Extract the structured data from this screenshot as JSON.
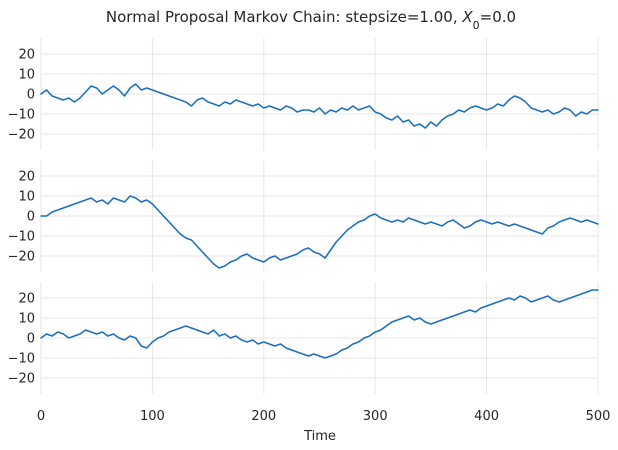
{
  "chart_data": {
    "type": "line",
    "title": "Normal Proposal Markov Chain: stepsize=1.00, X0=0.0",
    "title_parts": {
      "prefix": "Normal Proposal Markov Chain: stepsize=1.00, ",
      "symbol": "X",
      "subscript": "0",
      "suffix": "=0.0"
    },
    "xlabel": "Time",
    "xlim": [
      0,
      500
    ],
    "xticks": [
      0,
      100,
      200,
      300,
      400,
      500
    ],
    "line_color": "#1f6fbf",
    "grid": true,
    "panels": [
      {
        "ylim": [
          -28,
          28
        ],
        "yticks": [
          20,
          10,
          0,
          -10,
          -20
        ],
        "series": [
          {
            "x": [
              0,
              5,
              10,
              15,
              20,
              25,
              30,
              35,
              40,
              45,
              50,
              55,
              60,
              65,
              70,
              75,
              80,
              85,
              90,
              95,
              100,
              105,
              110,
              115,
              120,
              125,
              130,
              135,
              140,
              145,
              150,
              155,
              160,
              165,
              170,
              175,
              180,
              185,
              190,
              195,
              200,
              205,
              210,
              215,
              220,
              225,
              230,
              235,
              240,
              245,
              250,
              255,
              260,
              265,
              270,
              275,
              280,
              285,
              290,
              295,
              300,
              305,
              310,
              315,
              320,
              325,
              330,
              335,
              340,
              345,
              350,
              355,
              360,
              365,
              370,
              375,
              380,
              385,
              390,
              395,
              400,
              405,
              410,
              415,
              420,
              425,
              430,
              435,
              440,
              445,
              450,
              455,
              460,
              465,
              470,
              475,
              480,
              485,
              490,
              495,
              500
            ],
            "values": [
              0,
              2,
              -1,
              -2,
              -3,
              -2,
              -4,
              -2,
              1,
              4,
              3,
              0,
              2,
              4,
              2,
              -1,
              3,
              5,
              2,
              3,
              2,
              1,
              0,
              -1,
              -2,
              -3,
              -4,
              -6,
              -3,
              -2,
              -4,
              -5,
              -6,
              -4,
              -5,
              -3,
              -4,
              -5,
              -6,
              -5,
              -7,
              -6,
              -7,
              -8,
              -6,
              -7,
              -9,
              -8,
              -8,
              -9,
              -7,
              -10,
              -8,
              -9,
              -7,
              -8,
              -6,
              -8,
              -7,
              -6,
              -9,
              -10,
              -12,
              -13,
              -11,
              -14,
              -13,
              -16,
              -15,
              -17,
              -14,
              -16,
              -13,
              -11,
              -10,
              -8,
              -9,
              -7,
              -6,
              -7,
              -8,
              -7,
              -5,
              -6,
              -3,
              -1,
              -2,
              -4,
              -7,
              -8,
              -9,
              -8,
              -10,
              -9,
              -7,
              -8,
              -11,
              -9,
              -10,
              -8,
              -8
            ]
          }
        ]
      },
      {
        "ylim": [
          -28,
          28
        ],
        "yticks": [
          20,
          10,
          0,
          -10,
          -20
        ],
        "series": [
          {
            "x": [
              0,
              5,
              10,
              15,
              20,
              25,
              30,
              35,
              40,
              45,
              50,
              55,
              60,
              65,
              70,
              75,
              80,
              85,
              90,
              95,
              100,
              105,
              110,
              115,
              120,
              125,
              130,
              135,
              140,
              145,
              150,
              155,
              160,
              165,
              170,
              175,
              180,
              185,
              190,
              195,
              200,
              205,
              210,
              215,
              220,
              225,
              230,
              235,
              240,
              245,
              250,
              255,
              260,
              265,
              270,
              275,
              280,
              285,
              290,
              295,
              300,
              305,
              310,
              315,
              320,
              325,
              330,
              335,
              340,
              345,
              350,
              355,
              360,
              365,
              370,
              375,
              380,
              385,
              390,
              395,
              400,
              405,
              410,
              415,
              420,
              425,
              430,
              435,
              440,
              445,
              450,
              455,
              460,
              465,
              470,
              475,
              480,
              485,
              490,
              495,
              500
            ],
            "values": [
              0,
              0,
              2,
              3,
              4,
              5,
              6,
              7,
              8,
              9,
              7,
              8,
              6,
              9,
              8,
              7,
              10,
              9,
              7,
              8,
              6,
              3,
              0,
              -3,
              -6,
              -9,
              -11,
              -12,
              -15,
              -18,
              -21,
              -24,
              -26,
              -25,
              -23,
              -22,
              -20,
              -19,
              -21,
              -22,
              -23,
              -21,
              -20,
              -22,
              -21,
              -20,
              -19,
              -17,
              -16,
              -18,
              -19,
              -21,
              -17,
              -13,
              -10,
              -7,
              -5,
              -3,
              -2,
              0,
              1,
              -1,
              -2,
              -3,
              -2,
              -3,
              -1,
              -2,
              -3,
              -4,
              -3,
              -4,
              -5,
              -3,
              -2,
              -4,
              -6,
              -5,
              -3,
              -2,
              -3,
              -4,
              -3,
              -4,
              -5,
              -4,
              -5,
              -6,
              -7,
              -8,
              -9,
              -6,
              -5,
              -3,
              -2,
              -1,
              -2,
              -3,
              -2,
              -3,
              -4
            ]
          }
        ]
      },
      {
        "ylim": [
          -28,
          28
        ],
        "yticks": [
          20,
          10,
          0,
          -10,
          -20
        ],
        "series": [
          {
            "x": [
              0,
              5,
              10,
              15,
              20,
              25,
              30,
              35,
              40,
              45,
              50,
              55,
              60,
              65,
              70,
              75,
              80,
              85,
              90,
              95,
              100,
              105,
              110,
              115,
              120,
              125,
              130,
              135,
              140,
              145,
              150,
              155,
              160,
              165,
              170,
              175,
              180,
              185,
              190,
              195,
              200,
              205,
              210,
              215,
              220,
              225,
              230,
              235,
              240,
              245,
              250,
              255,
              260,
              265,
              270,
              275,
              280,
              285,
              290,
              295,
              300,
              305,
              310,
              315,
              320,
              325,
              330,
              335,
              340,
              345,
              350,
              355,
              360,
              365,
              370,
              375,
              380,
              385,
              390,
              395,
              400,
              405,
              410,
              415,
              420,
              425,
              430,
              435,
              440,
              445,
              450,
              455,
              460,
              465,
              470,
              475,
              480,
              485,
              490,
              495,
              500
            ],
            "values": [
              0,
              2,
              1,
              3,
              2,
              0,
              1,
              2,
              4,
              3,
              2,
              3,
              1,
              2,
              0,
              -1,
              1,
              0,
              -4,
              -5,
              -2,
              0,
              1,
              3,
              4,
              5,
              6,
              5,
              4,
              3,
              2,
              4,
              1,
              2,
              0,
              1,
              -1,
              -2,
              -1,
              -3,
              -2,
              -3,
              -4,
              -3,
              -5,
              -6,
              -7,
              -8,
              -9,
              -8,
              -9,
              -10,
              -9,
              -8,
              -6,
              -5,
              -3,
              -2,
              0,
              1,
              3,
              4,
              6,
              8,
              9,
              10,
              11,
              9,
              10,
              8,
              7,
              8,
              9,
              10,
              11,
              12,
              13,
              14,
              13,
              15,
              16,
              17,
              18,
              19,
              20,
              19,
              21,
              20,
              18,
              19,
              20,
              21,
              19,
              18,
              19,
              20,
              21,
              22,
              23,
              24,
              24
            ]
          }
        ]
      }
    ]
  }
}
